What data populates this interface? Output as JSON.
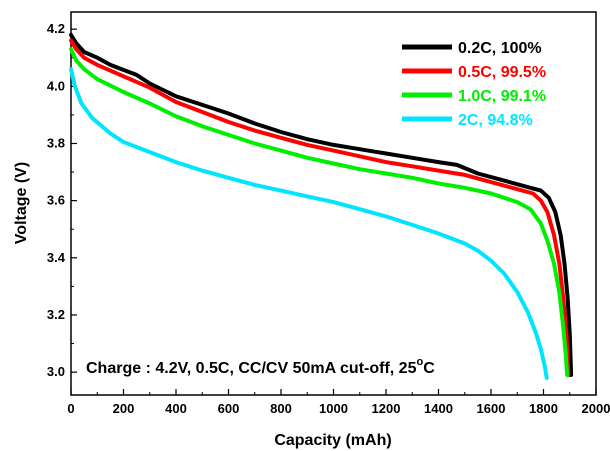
{
  "chart_data": {
    "type": "line",
    "xlabel": "Capacity (mAh)",
    "ylabel": "Voltage (V)",
    "xlim": [
      0,
      2000
    ],
    "ylim": [
      2.92,
      4.26
    ],
    "xticks": [
      "0",
      "200",
      "400",
      "600",
      "800",
      "1000",
      "1200",
      "1400",
      "1600",
      "1800",
      "2000"
    ],
    "yticks": [
      "3.0",
      "3.2",
      "3.4",
      "3.6",
      "3.8",
      "4.0",
      "4.2"
    ],
    "grid": false,
    "legend_position": "top-right",
    "annotation": {
      "text": "Charge : 4.2V, 0.5C, CC/CV 50mA cut-off, 25",
      "degree": "o",
      "unit": "C"
    },
    "series": [
      {
        "name": "0.2C, 100%",
        "color": "#000000",
        "points": [
          [
            0,
            4.18
          ],
          [
            20,
            4.15
          ],
          [
            50,
            4.12
          ],
          [
            100,
            4.1
          ],
          [
            150,
            4.075
          ],
          [
            250,
            4.04
          ],
          [
            300,
            4.01
          ],
          [
            400,
            3.965
          ],
          [
            500,
            3.935
          ],
          [
            600,
            3.905
          ],
          [
            700,
            3.87
          ],
          [
            800,
            3.84
          ],
          [
            900,
            3.815
          ],
          [
            1000,
            3.795
          ],
          [
            1100,
            3.78
          ],
          [
            1200,
            3.765
          ],
          [
            1300,
            3.75
          ],
          [
            1400,
            3.735
          ],
          [
            1470,
            3.725
          ],
          [
            1550,
            3.695
          ],
          [
            1650,
            3.67
          ],
          [
            1750,
            3.645
          ],
          [
            1790,
            3.635
          ],
          [
            1820,
            3.61
          ],
          [
            1845,
            3.56
          ],
          [
            1865,
            3.48
          ],
          [
            1880,
            3.38
          ],
          [
            1892,
            3.26
          ],
          [
            1900,
            3.13
          ],
          [
            1905,
            2.99
          ]
        ]
      },
      {
        "name": "0.5C, 99.5%",
        "color": "#ff0000",
        "points": [
          [
            0,
            4.16
          ],
          [
            20,
            4.13
          ],
          [
            50,
            4.1
          ],
          [
            100,
            4.075
          ],
          [
            200,
            4.035
          ],
          [
            300,
            3.995
          ],
          [
            400,
            3.945
          ],
          [
            500,
            3.91
          ],
          [
            600,
            3.875
          ],
          [
            700,
            3.845
          ],
          [
            800,
            3.82
          ],
          [
            900,
            3.795
          ],
          [
            1000,
            3.775
          ],
          [
            1100,
            3.755
          ],
          [
            1200,
            3.735
          ],
          [
            1300,
            3.72
          ],
          [
            1400,
            3.705
          ],
          [
            1500,
            3.69
          ],
          [
            1600,
            3.665
          ],
          [
            1700,
            3.64
          ],
          [
            1760,
            3.625
          ],
          [
            1790,
            3.6
          ],
          [
            1815,
            3.56
          ],
          [
            1840,
            3.48
          ],
          [
            1860,
            3.38
          ],
          [
            1875,
            3.26
          ],
          [
            1888,
            3.12
          ],
          [
            1895,
            2.99
          ]
        ]
      },
      {
        "name": "1.0C, 99.1%",
        "color": "#00ee00",
        "points": [
          [
            0,
            4.13
          ],
          [
            20,
            4.09
          ],
          [
            50,
            4.06
          ],
          [
            100,
            4.025
          ],
          [
            200,
            3.98
          ],
          [
            300,
            3.94
          ],
          [
            400,
            3.895
          ],
          [
            500,
            3.86
          ],
          [
            600,
            3.83
          ],
          [
            700,
            3.8
          ],
          [
            800,
            3.775
          ],
          [
            900,
            3.75
          ],
          [
            1000,
            3.73
          ],
          [
            1100,
            3.71
          ],
          [
            1200,
            3.695
          ],
          [
            1300,
            3.68
          ],
          [
            1400,
            3.66
          ],
          [
            1500,
            3.645
          ],
          [
            1600,
            3.625
          ],
          [
            1700,
            3.595
          ],
          [
            1750,
            3.57
          ],
          [
            1790,
            3.52
          ],
          [
            1815,
            3.46
          ],
          [
            1840,
            3.38
          ],
          [
            1860,
            3.28
          ],
          [
            1875,
            3.16
          ],
          [
            1885,
            3.06
          ],
          [
            1890,
            2.99
          ]
        ]
      },
      {
        "name": "2C, 94.8%",
        "color": "#00e5ff",
        "points": [
          [
            0,
            4.06
          ],
          [
            15,
            4.0
          ],
          [
            40,
            3.94
          ],
          [
            80,
            3.89
          ],
          [
            150,
            3.835
          ],
          [
            200,
            3.805
          ],
          [
            300,
            3.77
          ],
          [
            400,
            3.735
          ],
          [
            500,
            3.705
          ],
          [
            600,
            3.68
          ],
          [
            700,
            3.655
          ],
          [
            800,
            3.635
          ],
          [
            900,
            3.615
          ],
          [
            1000,
            3.595
          ],
          [
            1100,
            3.57
          ],
          [
            1200,
            3.545
          ],
          [
            1300,
            3.515
          ],
          [
            1400,
            3.485
          ],
          [
            1500,
            3.45
          ],
          [
            1550,
            3.425
          ],
          [
            1600,
            3.39
          ],
          [
            1650,
            3.345
          ],
          [
            1700,
            3.28
          ],
          [
            1740,
            3.21
          ],
          [
            1770,
            3.14
          ],
          [
            1790,
            3.08
          ],
          [
            1805,
            3.02
          ],
          [
            1812,
            2.98
          ]
        ]
      }
    ]
  }
}
